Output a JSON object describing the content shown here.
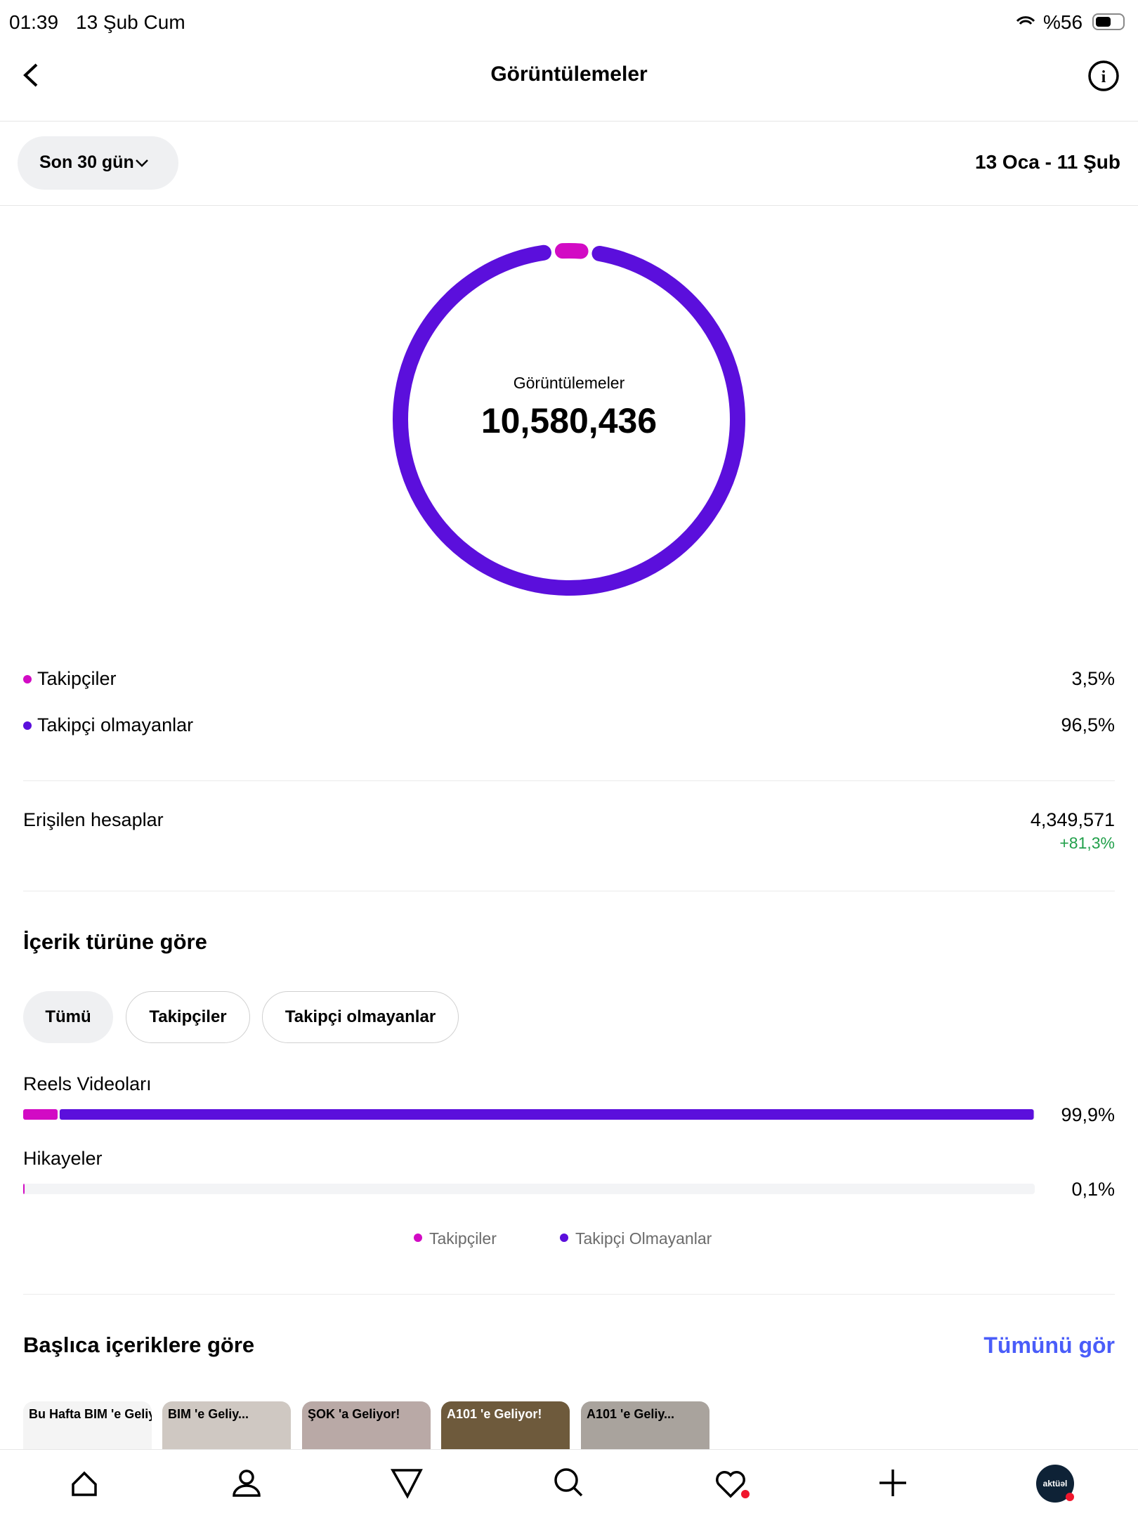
{
  "status_bar": {
    "time": "01:39",
    "date": "13 Şub Cum",
    "battery": "%56"
  },
  "header": {
    "title": "Görüntülemeler"
  },
  "filter": {
    "period": "Son 30 gün",
    "range": "13 Oca - 11 Şub"
  },
  "chart_data": {
    "type": "donut",
    "center_label": "Görüntülemeler",
    "total": {
      "value": 10580436,
      "label": "10,580,436"
    },
    "categories": [
      "Takipçiler",
      "Takipçi olmayanlar"
    ],
    "values": [
      3.5,
      96.5
    ],
    "value_labels": [
      "3,5%",
      "96,5%"
    ],
    "colors": [
      "#d20bc4",
      "#5b0fdc"
    ]
  },
  "reach": {
    "label": "Erişilen hesaplar",
    "value": "4,349,571",
    "change": "+81,3%"
  },
  "content_type": {
    "title": "İçerik türüne göre",
    "tabs": [
      "Tümü",
      "Takipçiler",
      "Takipçi olmayanlar"
    ],
    "chart": {
      "type": "stacked-bar",
      "categories": [
        "Reels Videoları",
        "Hikayeler"
      ],
      "xlim": [
        0,
        100
      ],
      "series": [
        {
          "name": "Takipçiler",
          "color": "#d20bc4",
          "values": [
            3.4,
            0.1
          ]
        },
        {
          "name": "Takipçi Olmayanlar",
          "color": "#5b0fdc",
          "values": [
            96.5,
            0
          ]
        }
      ],
      "totals": [
        99.9,
        0.1
      ],
      "total_labels": [
        "99,9%",
        "0,1%"
      ]
    }
  },
  "top_content": {
    "title": "Başlıca içeriklere göre",
    "link": "Tümünü gör",
    "thumbnails": [
      "Bu Hafta BIM 'e Geliy...",
      "BIM 'e Geliy...",
      "ŞOK 'a Geliyor!",
      "A101 'e Geliyor!",
      "A101 'e Geliy..."
    ]
  },
  "nav": {
    "profile": "aktüəl"
  }
}
